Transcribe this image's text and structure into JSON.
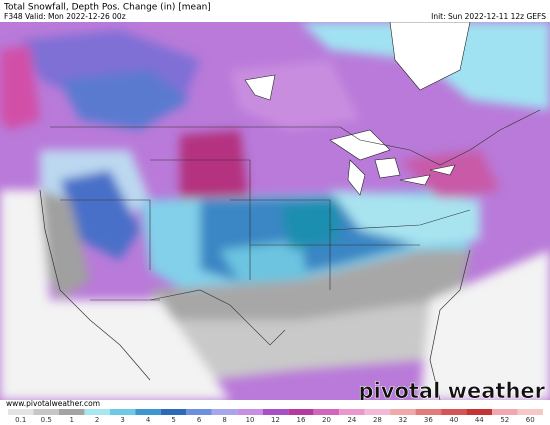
{
  "header": {
    "title": "Total Snowfall, Depth Pos. Change (in) [mean]",
    "valid": "F348 Valid: Mon 2022-12-26 00z",
    "init": "Init: Sun 2022-12-11 12z GEFS"
  },
  "footer": {
    "url": "www.pivotalweather.com",
    "logo": "pivotal weather"
  },
  "colorbar": {
    "ticks": [
      0.1,
      0.5,
      1,
      2,
      3,
      4,
      5,
      6,
      8,
      10,
      12,
      16,
      20,
      24,
      28,
      32,
      36,
      40,
      44,
      52,
      60
    ],
    "colors": [
      "#e4e4e4",
      "#c6c6c6",
      "#a4a4a4",
      "#a8e6f2",
      "#6ccae6",
      "#3c96d0",
      "#2e68b8",
      "#6e8ee0",
      "#a6a6ee",
      "#c78ee2",
      "#a94fc6",
      "#b63a9e",
      "#d565b8",
      "#e997cc",
      "#f2b9d8",
      "#f0a8a8",
      "#e37a7a",
      "#d65454",
      "#c43434",
      "#f2a8b0",
      "#f6c8c8"
    ]
  }
}
